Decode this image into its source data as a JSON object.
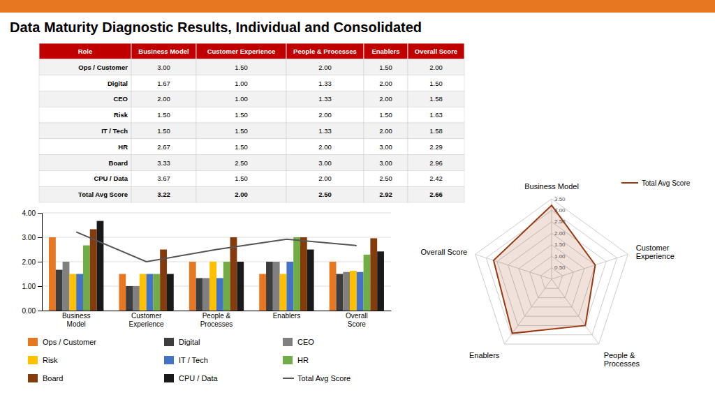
{
  "chart_data": [
    {
      "type": "table",
      "title": "Data Maturity Diagnostic Results, Individual and Consolidated",
      "columns": [
        "Role",
        "Business Model",
        "Customer Experience",
        "People & Processes",
        "Enablers",
        "Overall Score"
      ],
      "rows": [
        [
          "Ops / Customer",
          "3.00",
          "1.50",
          "2.00",
          "1.50",
          "2.00"
        ],
        [
          "Digital",
          "1.67",
          "1.00",
          "1.33",
          "2.00",
          "1.50"
        ],
        [
          "CEO",
          "2.00",
          "1.00",
          "1.33",
          "2.00",
          "1.58"
        ],
        [
          "Risk",
          "1.50",
          "1.50",
          "2.00",
          "1.50",
          "1.63"
        ],
        [
          "IT / Tech",
          "1.50",
          "1.50",
          "1.33",
          "2.00",
          "1.58"
        ],
        [
          "HR",
          "2.67",
          "1.50",
          "2.00",
          "3.00",
          "2.29"
        ],
        [
          "Board",
          "3.33",
          "2.50",
          "3.00",
          "3.00",
          "2.96"
        ],
        [
          "CPU / Data",
          "3.67",
          "1.50",
          "2.00",
          "2.50",
          "2.42"
        ],
        [
          "Total Avg Score",
          "3.22",
          "2.00",
          "2.50",
          "2.92",
          "2.66"
        ]
      ]
    },
    {
      "type": "bar",
      "categories": [
        "Business\nModel",
        "Customer\nExperience",
        "People &\nProcesses",
        "Enablers",
        "Overall\nScore"
      ],
      "series": [
        {
          "name": "Ops / Customer",
          "color": "#e87722",
          "values": [
            3.0,
            1.5,
            2.0,
            1.5,
            2.0
          ]
        },
        {
          "name": "Digital",
          "color": "#3d3d3d",
          "values": [
            1.67,
            1.0,
            1.33,
            2.0,
            1.5
          ]
        },
        {
          "name": "CEO",
          "color": "#808080",
          "values": [
            2.0,
            1.0,
            1.33,
            2.0,
            1.58
          ]
        },
        {
          "name": "Risk",
          "color": "#ffc000",
          "values": [
            1.5,
            1.5,
            2.0,
            1.5,
            1.63
          ]
        },
        {
          "name": "IT / Tech",
          "color": "#4472c4",
          "values": [
            1.5,
            1.5,
            1.33,
            2.0,
            1.58
          ]
        },
        {
          "name": "HR",
          "color": "#70ad47",
          "values": [
            2.67,
            1.5,
            2.0,
            3.0,
            2.29
          ]
        },
        {
          "name": "Board",
          "color": "#843c0c",
          "values": [
            3.33,
            2.5,
            3.0,
            3.0,
            2.96
          ]
        },
        {
          "name": "CPU / Data",
          "color": "#1a1a1a",
          "values": [
            3.67,
            1.5,
            2.0,
            2.5,
            2.42
          ]
        },
        {
          "name": "Total Avg Score",
          "type": "line",
          "color": "#555555",
          "values": [
            3.22,
            2.0,
            2.5,
            2.92,
            2.66
          ]
        }
      ],
      "ylim": [
        0,
        4
      ],
      "yticks": [
        {
          "value": 0,
          "label": "0.00"
        },
        {
          "value": 1,
          "label": "1.00"
        },
        {
          "value": 2,
          "label": "2.00"
        },
        {
          "value": 3,
          "label": "3.00"
        },
        {
          "value": 4,
          "label": "4.00"
        }
      ],
      "grid": true,
      "legend": "bottom"
    },
    {
      "type": "radar",
      "categories": [
        "Business Model",
        "Customer\nExperience",
        "People &\nProcesses",
        "Enablers",
        "Overall Score"
      ],
      "series": [
        {
          "name": "Total Avg Score",
          "color": "#9b3a10",
          "values": [
            3.22,
            2.0,
            2.5,
            2.92,
            2.66
          ]
        }
      ],
      "ylim": [
        0,
        3.5
      ],
      "yticks": [
        {
          "value": 0.5,
          "label": "0.50"
        },
        {
          "value": 1,
          "label": "1.00"
        },
        {
          "value": 1.5,
          "label": "1.50"
        },
        {
          "value": 2,
          "label": "2.00"
        },
        {
          "value": 2.5,
          "label": "2.50"
        },
        {
          "value": 3,
          "label": "3.00"
        },
        {
          "value": 3.5,
          "label": "3.50"
        }
      ],
      "grid": true,
      "legend": "top-right"
    }
  ]
}
